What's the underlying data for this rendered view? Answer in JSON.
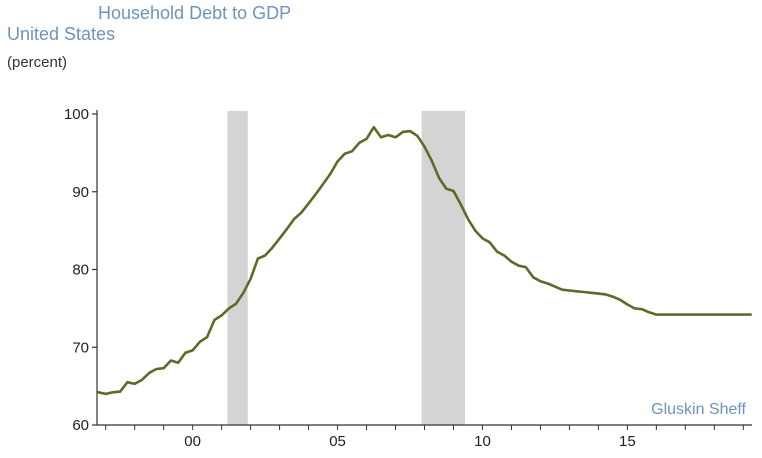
{
  "chart_data": {
    "type": "line",
    "title": "Household Debt to GDP",
    "subtitle": "United States",
    "unit": "(percent)",
    "source": "Gluskin Sheff",
    "xlabel": "",
    "ylabel": "",
    "xlim": [
      1996.7,
      2019.3
    ],
    "ylim": [
      60,
      100
    ],
    "yticks": [
      60,
      70,
      80,
      90,
      100
    ],
    "ytick_labels": [
      "60",
      "70",
      "80",
      "90",
      "100"
    ],
    "xticks": [
      2000,
      2005,
      2010,
      2015
    ],
    "xtick_labels": [
      "00",
      "05",
      "10",
      "15"
    ],
    "grid": false,
    "legend": "none",
    "colors": {
      "line": "#5e6a26",
      "recession": "#d4d4d4",
      "axis": "#333333"
    },
    "recessions": [
      {
        "start": 2001.2,
        "end": 2001.9
      },
      {
        "start": 2007.9,
        "end": 2009.4
      }
    ],
    "series": [
      {
        "x": [
          1996.75,
          1997.0,
          1997.25,
          1997.5,
          1997.75,
          1998.0,
          1998.25,
          1998.5,
          1998.75,
          1999.0,
          1999.25,
          1999.5,
          1999.75,
          2000.0,
          2000.25,
          2000.5,
          2000.75,
          2001.0,
          2001.25,
          2001.5,
          2001.75,
          2002.0,
          2002.25,
          2002.5,
          2002.75,
          2003.0,
          2003.25,
          2003.5,
          2003.75,
          2004.0,
          2004.25,
          2004.5,
          2004.75,
          2005.0,
          2005.25,
          2005.5,
          2005.75,
          2006.0,
          2006.25,
          2006.5,
          2006.75,
          2007.0,
          2007.25,
          2007.5,
          2007.75,
          2008.0,
          2008.25,
          2008.5,
          2008.75,
          2009.0,
          2009.25,
          2009.5,
          2009.75,
          2010.0,
          2010.25,
          2010.5,
          2010.75,
          2011.0,
          2011.25,
          2011.5,
          2011.75,
          2012.0,
          2012.25,
          2012.5,
          2012.75,
          2013.0,
          2013.25,
          2013.5,
          2013.75,
          2014.0,
          2014.25,
          2014.5,
          2014.75,
          2015.0,
          2015.25,
          2015.5,
          2015.75,
          2016.0,
          2016.25,
          2016.5,
          2016.75,
          2017.0,
          2017.25,
          2017.5,
          2017.75,
          2018.0,
          2018.25,
          2018.5,
          2018.75,
          2019.0,
          2019.25
        ],
        "values": [
          64.2,
          64.0,
          64.2,
          64.3,
          65.5,
          65.3,
          65.8,
          66.7,
          67.2,
          67.3,
          68.3,
          68.0,
          69.3,
          69.6,
          70.7,
          71.3,
          73.5,
          74.1,
          75.0,
          75.6,
          77.0,
          78.8,
          81.4,
          81.8,
          82.8,
          84.0,
          85.2,
          86.5,
          87.3,
          88.5,
          89.7,
          91.0,
          92.3,
          93.9,
          94.9,
          95.2,
          96.3,
          96.8,
          98.3,
          97.0,
          97.3,
          97.0,
          97.7,
          97.8,
          97.2,
          95.8,
          94.0,
          91.8,
          90.4,
          90.1,
          88.4,
          86.5,
          85.0,
          84.0,
          83.5,
          82.3,
          81.8,
          81.0,
          80.5,
          80.3,
          79.0,
          78.5,
          78.2,
          77.8,
          77.4,
          77.3,
          77.2,
          77.1,
          77.0,
          76.9,
          76.8,
          76.5,
          76.1,
          75.5,
          75.0,
          74.9,
          74.5,
          74.2,
          74.2,
          74.2,
          74.2,
          74.2,
          74.2,
          74.2,
          74.2,
          74.2,
          74.2,
          74.2,
          74.2,
          74.2,
          74.2
        ]
      }
    ]
  }
}
